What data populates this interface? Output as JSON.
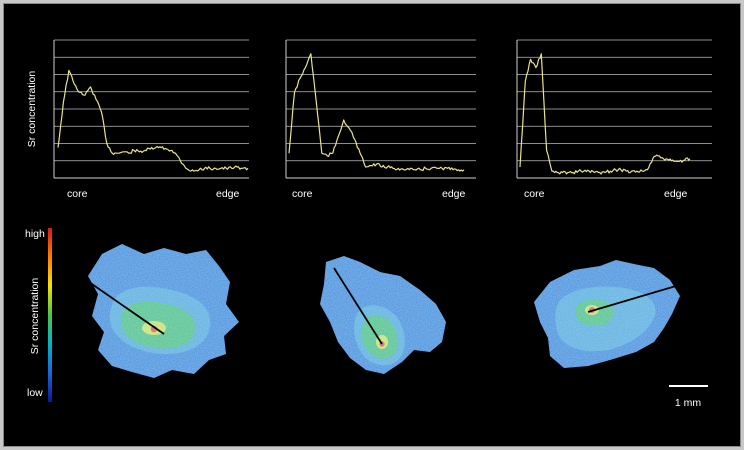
{
  "chart_data": {
    "type": "line",
    "ylabel": "Sr concentration",
    "x_start_label": "core",
    "x_end_label": "edge",
    "grid": true,
    "line_color": "#e8e48a",
    "series": [
      {
        "values": [
          0.22,
          0.55,
          0.78,
          0.68,
          0.62,
          0.6,
          0.66,
          0.57,
          0.48,
          0.25,
          0.18,
          0.18,
          0.19,
          0.18,
          0.2,
          0.19,
          0.2,
          0.21,
          0.22,
          0.22,
          0.21,
          0.2,
          0.16,
          0.1,
          0.06,
          0.05,
          0.06,
          0.07,
          0.07,
          0.07,
          0.07,
          0.07,
          0.07,
          0.08,
          0.07,
          0.07
        ]
      },
      {
        "values": [
          0.18,
          0.62,
          0.72,
          0.8,
          0.9,
          0.55,
          0.18,
          0.16,
          0.18,
          0.3,
          0.42,
          0.36,
          0.28,
          0.18,
          0.08,
          0.09,
          0.1,
          0.08,
          0.08,
          0.07,
          0.07,
          0.06,
          0.06,
          0.06,
          0.06,
          0.07,
          0.07,
          0.07,
          0.07,
          0.07,
          0.06,
          0.06,
          0.06
        ]
      },
      {
        "values": [
          0.08,
          0.7,
          0.86,
          0.8,
          0.9,
          0.2,
          0.05,
          0.04,
          0.04,
          0.04,
          0.04,
          0.05,
          0.05,
          0.05,
          0.04,
          0.04,
          0.04,
          0.05,
          0.06,
          0.06,
          0.05,
          0.05,
          0.05,
          0.05,
          0.06,
          0.14,
          0.16,
          0.14,
          0.13,
          0.12,
          0.12,
          0.13,
          0.14
        ]
      }
    ]
  },
  "colorbar": {
    "title": "Sr concentration",
    "high_label": "high",
    "low_label": "low",
    "stops": [
      "#d7191c",
      "#ff7f00",
      "#f3e400",
      "#4cc44c",
      "#00b4c8",
      "#1e64dc",
      "#0a1a96"
    ]
  },
  "scale_bar": {
    "label": "1 mm"
  },
  "maps": {
    "outer_color": "#2c8ddd",
    "ring_color": "#4fb0df",
    "inner_color": "#3fc67a",
    "core_color": "#d2e83c",
    "hot_color": "#e03a1c",
    "transect_color": "#000000"
  }
}
